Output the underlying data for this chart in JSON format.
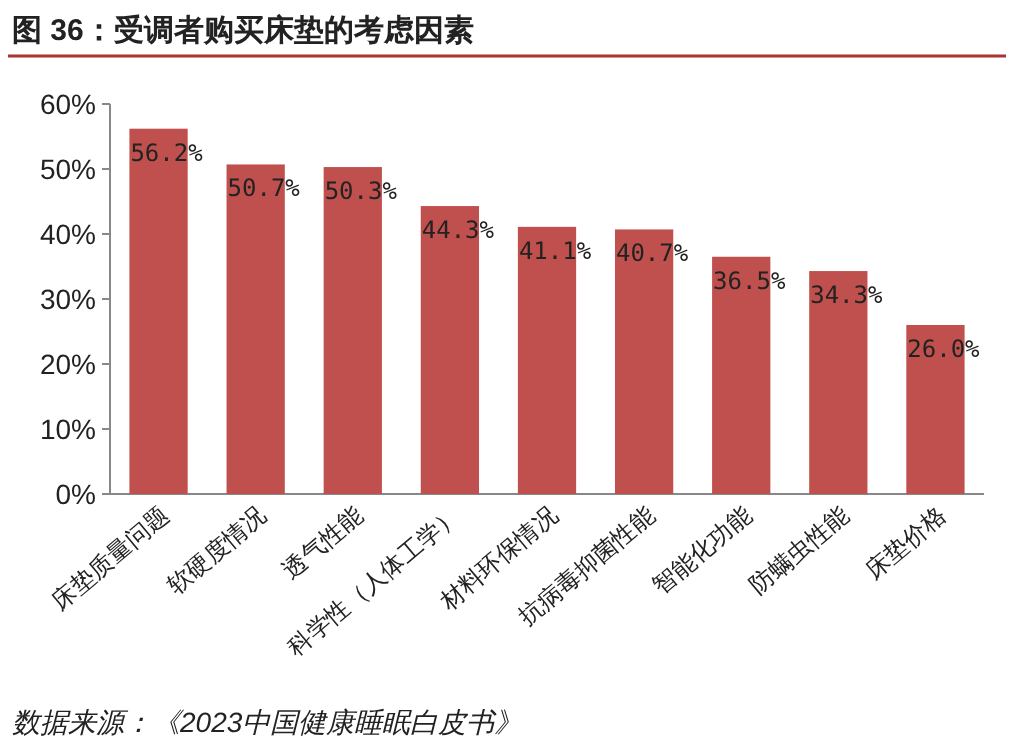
{
  "chart_data": {
    "type": "bar",
    "title": "图 36：受调者购买床垫的考虑因素",
    "categories": [
      "床垫质量问题",
      "软硬度情况",
      "透气性能",
      "科学性（人体工学）",
      "材料环保情况",
      "抗病毒抑菌性能",
      "智能化功能",
      "防螨虫性能",
      "床垫价格"
    ],
    "values": [
      56.2,
      50.7,
      50.3,
      44.3,
      41.1,
      40.7,
      36.5,
      34.3,
      26.0
    ],
    "value_labels": [
      "56.2%",
      "50.7%",
      "50.3%",
      "44.3%",
      "41.1%",
      "40.7%",
      "36.5%",
      "34.3%",
      "26.0%"
    ],
    "color": "#c0504d",
    "ylim": [
      0,
      60
    ],
    "yticks": [
      {
        "value": 0,
        "label": "0%"
      },
      {
        "value": 10,
        "label": "10%"
      },
      {
        "value": 20,
        "label": "20%"
      },
      {
        "value": 30,
        "label": "30%"
      },
      {
        "value": 40,
        "label": "40%"
      },
      {
        "value": 50,
        "label": "50%"
      },
      {
        "value": 60,
        "label": "60%"
      }
    ],
    "annotations": [
      "数据来源：《2023中国健康睡眠白皮书》"
    ]
  }
}
